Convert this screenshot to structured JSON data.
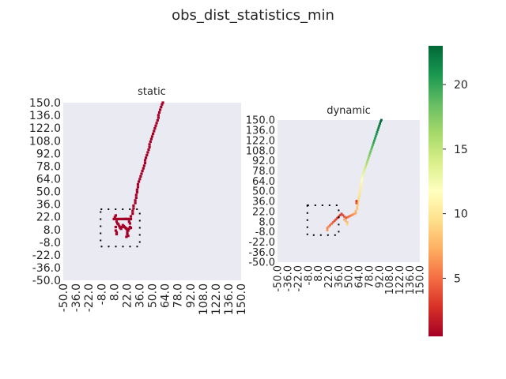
{
  "suptitle": "obs_dist_statistics_min",
  "chart_data": [
    {
      "type": "heatmap",
      "title": "static",
      "xticks": [
        "-50.0",
        "-36.0",
        "-22.0",
        "-8.0",
        "8.0",
        "22.0",
        "36.0",
        "50.0",
        "64.0",
        "78.0",
        "92.0",
        "108.0",
        "122.0",
        "136.0",
        "150.0"
      ],
      "yticks": [
        "150.0",
        "136.0",
        "122.0",
        "108.0",
        "92.0",
        "78.0",
        "64.0",
        "50.0",
        "36.0",
        "22.0",
        "8.0",
        "-8.0",
        "-22.0",
        "-36.0",
        "-50.0"
      ],
      "xlim": [
        -50,
        150
      ],
      "ylim": [
        -50,
        150
      ],
      "background": "#eaeaf2",
      "value_all_cells": 0.5,
      "cells": [
        [
          62,
          150
        ],
        [
          61,
          148
        ],
        [
          60,
          145
        ],
        [
          59,
          142
        ],
        [
          58,
          139
        ],
        [
          57,
          136
        ],
        [
          57,
          133
        ],
        [
          56,
          130
        ],
        [
          55,
          127
        ],
        [
          54,
          124
        ],
        [
          53,
          121
        ],
        [
          52,
          118
        ],
        [
          51,
          115
        ],
        [
          50,
          112
        ],
        [
          49,
          109
        ],
        [
          48,
          106
        ],
        [
          47,
          103
        ],
        [
          47,
          100
        ],
        [
          46,
          97
        ],
        [
          45,
          94
        ],
        [
          44,
          91
        ],
        [
          43,
          88
        ],
        [
          42,
          85
        ],
        [
          42,
          82
        ],
        [
          41,
          79
        ],
        [
          40,
          76
        ],
        [
          39,
          73
        ],
        [
          38,
          70
        ],
        [
          37,
          67
        ],
        [
          36,
          64
        ],
        [
          35,
          61
        ],
        [
          34,
          58
        ],
        [
          34,
          55
        ],
        [
          33,
          52
        ],
        [
          33,
          49
        ],
        [
          32,
          46
        ],
        [
          32,
          43
        ],
        [
          31,
          40
        ],
        [
          31,
          37
        ],
        [
          29,
          34
        ],
        [
          29,
          31
        ],
        [
          28,
          28
        ],
        [
          28,
          25
        ],
        [
          26,
          22
        ],
        [
          26,
          19
        ],
        [
          24,
          19
        ],
        [
          22,
          19
        ],
        [
          21,
          19
        ],
        [
          20,
          19
        ],
        [
          19,
          19
        ],
        [
          17,
          19
        ],
        [
          15,
          19
        ],
        [
          13,
          19
        ],
        [
          11,
          19
        ],
        [
          9,
          19
        ],
        [
          7,
          19
        ],
        [
          8,
          21
        ],
        [
          9,
          23
        ],
        [
          10,
          16
        ],
        [
          11,
          14
        ],
        [
          12,
          13
        ],
        [
          13,
          11
        ],
        [
          14,
          9
        ],
        [
          15,
          8
        ],
        [
          16,
          10
        ],
        [
          17,
          12
        ],
        [
          18,
          11
        ],
        [
          19,
          10
        ],
        [
          20,
          9
        ],
        [
          21,
          8
        ],
        [
          22,
          7
        ],
        [
          22,
          4
        ],
        [
          23,
          6
        ],
        [
          24,
          8
        ],
        [
          25,
          10
        ],
        [
          26,
          9
        ],
        [
          25,
          14
        ],
        [
          24,
          16
        ],
        [
          9,
          10
        ],
        [
          9,
          6
        ],
        [
          10,
          4
        ],
        [
          10,
          2
        ],
        [
          22,
          2
        ],
        [
          23,
          0
        ],
        [
          21,
          -1
        ]
      ],
      "ego_box": {
        "x": [
          -8,
          36
        ],
        "y": [
          -12,
          30
        ]
      }
    },
    {
      "type": "heatmap",
      "title": "dynamic",
      "xticks": [
        "-50.0",
        "-36.0",
        "-22.0",
        "-8.0",
        "8.0",
        "22.0",
        "36.0",
        "50.0",
        "64.0",
        "78.0",
        "92.0",
        "108.0",
        "122.0",
        "136.0",
        "150.0"
      ],
      "yticks": [
        "150.0",
        "136.0",
        "122.0",
        "108.0",
        "92.0",
        "78.0",
        "64.0",
        "50.0",
        "36.0",
        "22.0",
        "8.0",
        "-8.0",
        "-22.0",
        "-36.0",
        "-50.0"
      ],
      "xlim": [
        -50,
        150
      ],
      "ylim": [
        -50,
        150
      ],
      "background": "#eaeaf2",
      "cells": [
        [
          96,
          150,
          23
        ],
        [
          95,
          148,
          22.8
        ],
        [
          94,
          145,
          22.5
        ],
        [
          93,
          142,
          22.2
        ],
        [
          92,
          139,
          22
        ],
        [
          91,
          136,
          21.7
        ],
        [
          90,
          133,
          21.4
        ],
        [
          89,
          130,
          21.1
        ],
        [
          88,
          127,
          20.8
        ],
        [
          87,
          124,
          20.5
        ],
        [
          86,
          121,
          20.2
        ],
        [
          85,
          118,
          19.9
        ],
        [
          84,
          115,
          19.5
        ],
        [
          83,
          112,
          19.1
        ],
        [
          82,
          109,
          18.7
        ],
        [
          81,
          106,
          18.3
        ],
        [
          80,
          103,
          17.9
        ],
        [
          79,
          100,
          17.5
        ],
        [
          78,
          97,
          17
        ],
        [
          77,
          94,
          16.5
        ],
        [
          76,
          91,
          16
        ],
        [
          75,
          88,
          15.5
        ],
        [
          74,
          85,
          15
        ],
        [
          73,
          82,
          14.5
        ],
        [
          72,
          79,
          14
        ],
        [
          71,
          76,
          13.5
        ],
        [
          70,
          73,
          13
        ],
        [
          69,
          70,
          12.4
        ],
        [
          69,
          67,
          12
        ],
        [
          68,
          64,
          11.6
        ],
        [
          68,
          61,
          11.2
        ],
        [
          67,
          58,
          10.8
        ],
        [
          67,
          55,
          10.5
        ],
        [
          66,
          52,
          10.2
        ],
        [
          66,
          49,
          10
        ],
        [
          65,
          46,
          9.8
        ],
        [
          65,
          43,
          9.6
        ],
        [
          64,
          40,
          9.4
        ],
        [
          64,
          37,
          9.2
        ],
        [
          63,
          34,
          9
        ],
        [
          63,
          31,
          8.7
        ],
        [
          62,
          28,
          8.4
        ],
        [
          62,
          25,
          8
        ],
        [
          60,
          22,
          7.6
        ],
        [
          60,
          19,
          7.2
        ],
        [
          58,
          18,
          6.8
        ],
        [
          56,
          17,
          6.4
        ],
        [
          54,
          16,
          6
        ],
        [
          52,
          15,
          5.6
        ],
        [
          50,
          14,
          5.2
        ],
        [
          48,
          13,
          4.8
        ],
        [
          46,
          12,
          4.4
        ],
        [
          44,
          14,
          4
        ],
        [
          42,
          16,
          3.6
        ],
        [
          40,
          18,
          3.2
        ],
        [
          38,
          16,
          3
        ],
        [
          36,
          14,
          3
        ],
        [
          34,
          12,
          3
        ],
        [
          32,
          10,
          3.4
        ],
        [
          30,
          8,
          3.8
        ],
        [
          28,
          6,
          4.2
        ],
        [
          26,
          4,
          4.6
        ],
        [
          24,
          2,
          5
        ],
        [
          22,
          0,
          5.4
        ],
        [
          20,
          -2,
          5.8
        ],
        [
          20,
          -5,
          6.2
        ],
        [
          44,
          10,
          7
        ],
        [
          46,
          8,
          7.5
        ],
        [
          48,
          6,
          8
        ],
        [
          48,
          3,
          9
        ],
        [
          61,
          33,
          4
        ],
        [
          61,
          36,
          3
        ]
      ],
      "ego_box": {
        "x": [
          -8,
          36
        ],
        "y": [
          -12,
          30
        ]
      }
    }
  ],
  "colorbar": {
    "min": 0.5,
    "max": 23,
    "ticks": [
      "5",
      "10",
      "15",
      "20"
    ],
    "tick_values": [
      5,
      10,
      15,
      20
    ],
    "colormap": "RdYlGn"
  }
}
